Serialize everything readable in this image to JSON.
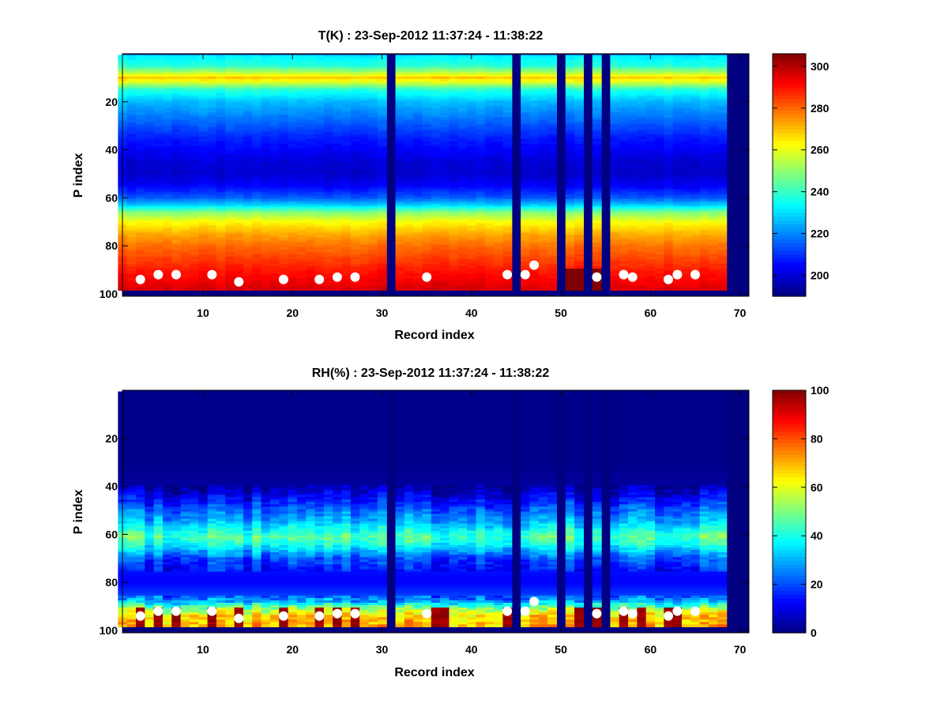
{
  "chart_data": [
    {
      "type": "heatmap",
      "title": "T(K) : 23-Sep-2012 11:37:24 - 11:38:22",
      "xlabel": "Record index",
      "ylabel": "P index",
      "xlim": [
        1,
        71
      ],
      "ylim": [
        0,
        101
      ],
      "y_reversed": true,
      "x_ticks": [
        10,
        20,
        30,
        40,
        50,
        60,
        70
      ],
      "y_ticks": [
        20,
        40,
        60,
        80,
        100
      ],
      "colormap": "jet",
      "clim": [
        190,
        306
      ],
      "colorbar_ticks": [
        200,
        220,
        240,
        260,
        280,
        300
      ],
      "missing_records": [
        31,
        45,
        50,
        53,
        55,
        69,
        70,
        71
      ],
      "missing_rows_from": 99,
      "profile": {
        "p_index": [
          1,
          5,
          8,
          10,
          12,
          15,
          20,
          25,
          30,
          35,
          40,
          45,
          50,
          55,
          60,
          63,
          66,
          70,
          75,
          80,
          85,
          90,
          95,
          98
        ],
        "value": [
          232,
          238,
          255,
          268,
          258,
          238,
          226,
          220,
          214,
          208,
          204,
          200,
          199,
          204,
          215,
          228,
          248,
          262,
          272,
          279,
          284,
          289,
          293,
          296
        ]
      },
      "markers": {
        "color": "#ffffff",
        "x": [
          3,
          5,
          7,
          11,
          14,
          19,
          23,
          25,
          27,
          35,
          44,
          46,
          47,
          54,
          57,
          58,
          62,
          63,
          65
        ],
        "y": [
          94,
          92,
          92,
          92,
          95,
          94,
          94,
          93,
          93,
          93,
          92,
          92,
          88,
          93,
          92,
          93,
          94,
          92,
          92
        ]
      }
    },
    {
      "type": "heatmap",
      "title": "RH(%) : 23-Sep-2012 11:37:24 - 11:38:22",
      "xlabel": "Record index",
      "ylabel": "P index",
      "xlim": [
        1,
        71
      ],
      "ylim": [
        0,
        101
      ],
      "y_reversed": true,
      "x_ticks": [
        10,
        20,
        30,
        40,
        50,
        60,
        70
      ],
      "y_ticks": [
        20,
        40,
        60,
        80,
        100
      ],
      "colormap": "jet",
      "clim": [
        0,
        100
      ],
      "colorbar_ticks": [
        0,
        20,
        40,
        60,
        80,
        100
      ],
      "missing_records": [
        31,
        45,
        50,
        53,
        55,
        69,
        70,
        71
      ],
      "missing_rows_from": 99,
      "profile": {
        "p_index": [
          1,
          30,
          40,
          45,
          50,
          55,
          58,
          61,
          64,
          67,
          70,
          75,
          80,
          85,
          88,
          91,
          94,
          98
        ],
        "value": [
          1,
          1,
          3,
          12,
          22,
          30,
          38,
          45,
          40,
          30,
          20,
          14,
          12,
          18,
          30,
          52,
          66,
          68
        ]
      },
      "wet_records": [
        3,
        5,
        7,
        11,
        14,
        19,
        23,
        25,
        27,
        36,
        37,
        44,
        52,
        54,
        57,
        59,
        62,
        63
      ],
      "markers": {
        "color": "#ffffff",
        "x": [
          3,
          5,
          7,
          11,
          14,
          19,
          23,
          25,
          27,
          35,
          44,
          46,
          47,
          54,
          57,
          58,
          62,
          63,
          65
        ],
        "y": [
          94,
          92,
          92,
          92,
          95,
          94,
          94,
          93,
          93,
          93,
          92,
          92,
          88,
          93,
          92,
          93,
          94,
          92,
          92
        ]
      }
    }
  ]
}
